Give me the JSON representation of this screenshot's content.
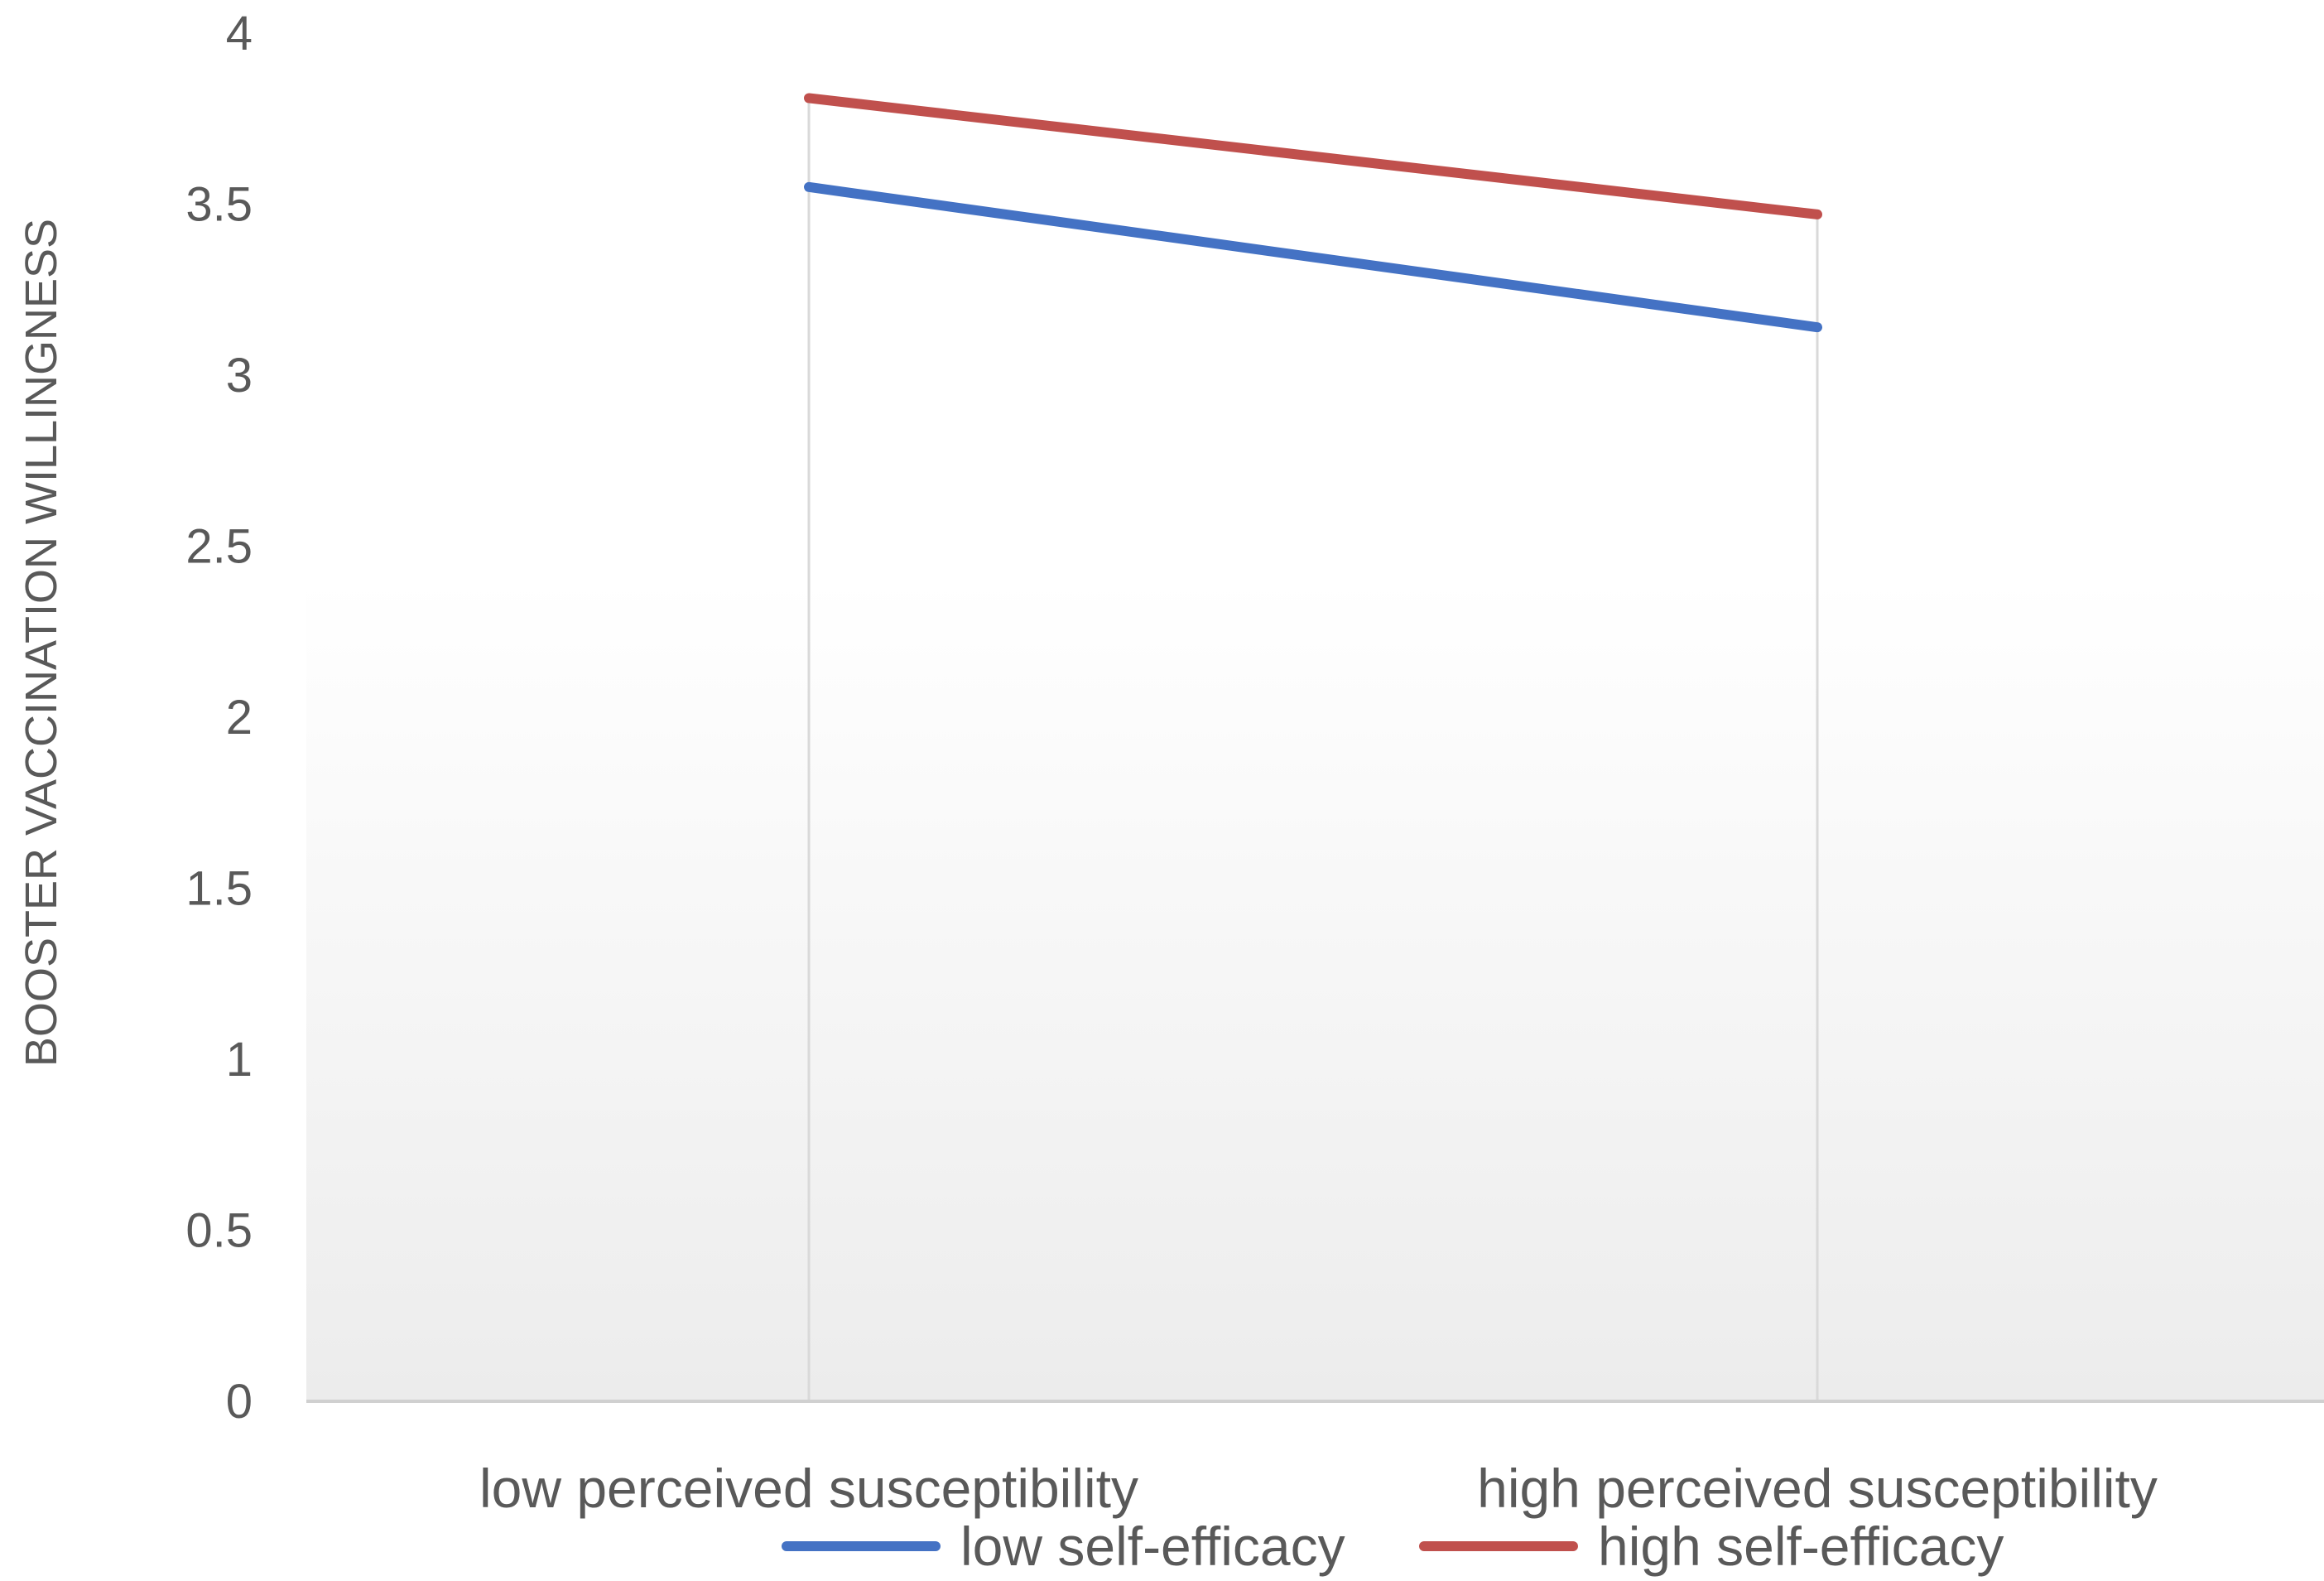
{
  "chart_data": {
    "type": "line",
    "title": "",
    "xlabel": "",
    "ylabel": "BOOSTER VACCINATION WILLINGNESS",
    "categories": [
      "low perceived susceptibility",
      "high perceived susceptibility"
    ],
    "series": [
      {
        "name": "low self-efficacy",
        "values": [
          3.55,
          3.14
        ],
        "color": "#4472C4"
      },
      {
        "name": "high self-efficacy",
        "values": [
          3.81,
          3.47
        ],
        "color": "#C0504D"
      }
    ],
    "ylim": [
      0,
      4
    ],
    "yticks": [
      "0",
      "0.5",
      "1",
      "1.5",
      "2",
      "2.5",
      "3",
      "3.5",
      "4"
    ],
    "grid": false,
    "category_drop_lines": true,
    "legend": "bottom",
    "plot_background": "gradient white to light gray"
  }
}
